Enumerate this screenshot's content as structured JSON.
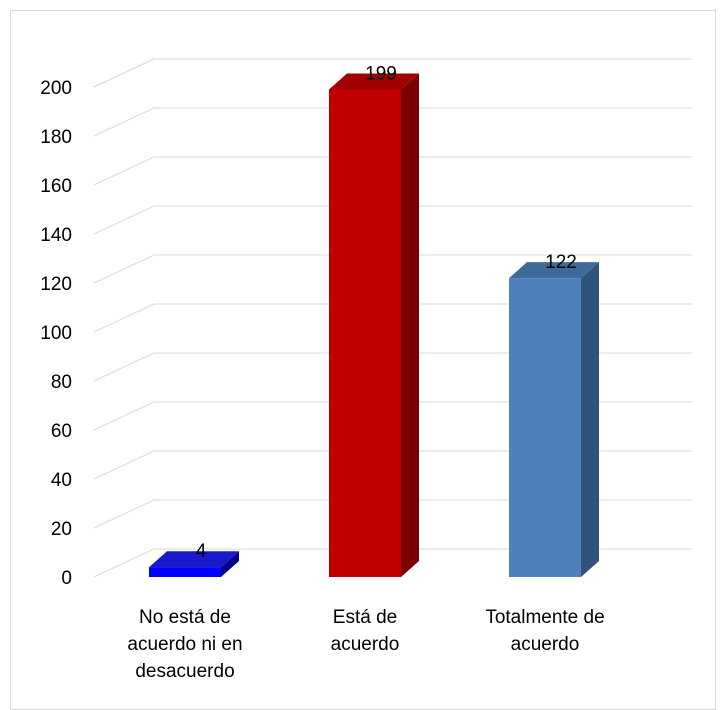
{
  "chart_data": {
    "type": "bar",
    "title": "",
    "xlabel": "",
    "ylabel": "",
    "ylim": [
      0,
      200
    ],
    "ytick_step": 20,
    "grid": true,
    "legend": "none",
    "style": "3d-column",
    "categories": [
      [
        "No está de",
        "acuerdo ni en",
        "desacuerdo"
      ],
      [
        "Está de",
        "acuerdo"
      ],
      [
        "Totalmente de",
        "acuerdo"
      ]
    ],
    "values": [
      4,
      199,
      122
    ],
    "data_labels": [
      "4",
      "199",
      "122"
    ],
    "colors": [
      {
        "front": "#0000ff",
        "top": "#1a1acc",
        "side": "#00008b"
      },
      {
        "front": "#c00000",
        "top": "#a00000",
        "side": "#7a0000"
      },
      {
        "front": "#4f81bd",
        "top": "#3f6a9c",
        "side": "#31527b"
      }
    ]
  }
}
